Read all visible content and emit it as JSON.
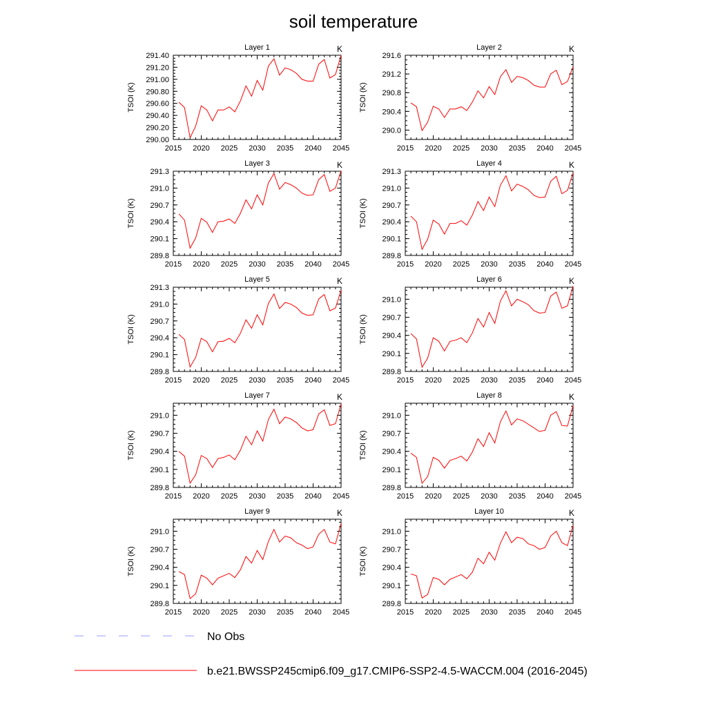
{
  "title": "soil temperature",
  "chart_data": {
    "type": "line",
    "title": "soil temperature",
    "ylabel": "TSOI  (K)",
    "units_label": "K",
    "x": [
      2016,
      2017,
      2018,
      2019,
      2020,
      2021,
      2022,
      2023,
      2024,
      2025,
      2026,
      2027,
      2028,
      2029,
      2030,
      2031,
      2032,
      2033,
      2034,
      2035,
      2036,
      2037,
      2038,
      2039,
      2040,
      2041,
      2042,
      2043,
      2044,
      2045
    ],
    "xlim": [
      2015,
      2045
    ],
    "xticks": [
      "2015",
      "2020",
      "2025",
      "2030",
      "2035",
      "2040",
      "2045"
    ],
    "series_color": "#ff0000",
    "panels": [
      {
        "title": "Layer 1",
        "ylim": [
          290.0,
          291.4
        ],
        "yticks": [
          "290.00",
          "290.20",
          "290.40",
          "290.60",
          "290.80",
          "291.00",
          "291.20",
          "291.40"
        ],
        "values": [
          290.62,
          290.53,
          290.03,
          290.22,
          290.56,
          290.49,
          290.31,
          290.49,
          290.49,
          290.54,
          290.46,
          290.64,
          290.89,
          290.72,
          290.98,
          290.82,
          291.22,
          291.34,
          291.07,
          291.19,
          291.16,
          291.1,
          291.0,
          290.97,
          290.97,
          291.25,
          291.33,
          291.02,
          291.08,
          291.4
        ]
      },
      {
        "title": "Layer 2",
        "ylim": [
          289.8,
          291.6
        ],
        "yticks": [
          "290.0",
          "290.4",
          "290.8",
          "291.2",
          "291.6"
        ],
        "values": [
          290.58,
          290.5,
          289.99,
          290.17,
          290.51,
          290.45,
          290.27,
          290.45,
          290.45,
          290.5,
          290.42,
          290.6,
          290.84,
          290.69,
          290.93,
          290.76,
          291.14,
          291.29,
          291.02,
          291.15,
          291.12,
          291.06,
          290.96,
          290.92,
          290.92,
          291.2,
          291.28,
          290.97,
          291.04,
          291.35
        ]
      },
      {
        "title": "Layer 3",
        "ylim": [
          289.8,
          291.3
        ],
        "yticks": [
          "289.8",
          "290.1",
          "290.4",
          "290.7",
          "291.0",
          "291.3"
        ],
        "values": [
          290.54,
          290.43,
          289.93,
          290.11,
          290.46,
          290.39,
          290.21,
          290.4,
          290.41,
          290.45,
          290.37,
          290.55,
          290.79,
          290.63,
          290.88,
          290.7,
          291.09,
          291.26,
          290.98,
          291.1,
          291.06,
          291.0,
          290.91,
          290.87,
          290.88,
          291.15,
          291.24,
          290.94,
          291.0,
          291.31
        ]
      },
      {
        "title": "Layer 4",
        "ylim": [
          289.8,
          291.3
        ],
        "yticks": [
          "289.8",
          "290.1",
          "290.4",
          "290.7",
          "291.0",
          "291.3"
        ],
        "values": [
          290.5,
          290.4,
          289.91,
          290.09,
          290.43,
          290.36,
          290.18,
          290.37,
          290.37,
          290.42,
          290.34,
          290.52,
          290.76,
          290.6,
          290.84,
          290.67,
          291.05,
          291.22,
          290.95,
          291.07,
          291.03,
          290.97,
          290.87,
          290.83,
          290.84,
          291.12,
          291.21,
          290.9,
          290.96,
          291.27
        ]
      },
      {
        "title": "Layer 5",
        "ylim": [
          289.8,
          291.3
        ],
        "yticks": [
          "289.8",
          "290.1",
          "290.4",
          "290.7",
          "291.0",
          "291.3"
        ],
        "values": [
          290.46,
          290.37,
          289.88,
          290.05,
          290.39,
          290.33,
          290.15,
          290.33,
          290.34,
          290.39,
          290.31,
          290.48,
          290.72,
          290.57,
          290.81,
          290.63,
          291.01,
          291.18,
          290.92,
          291.03,
          291.0,
          290.94,
          290.84,
          290.8,
          290.81,
          291.09,
          291.17,
          290.88,
          290.93,
          291.25
        ]
      },
      {
        "title": "Layer 6",
        "ylim": [
          289.8,
          291.2
        ],
        "yticks": [
          "289.8",
          "290.1",
          "290.4",
          "290.7",
          "291.0"
        ],
        "values": [
          290.43,
          290.34,
          289.87,
          290.02,
          290.36,
          290.3,
          290.14,
          290.3,
          290.32,
          290.36,
          290.28,
          290.44,
          290.68,
          290.54,
          290.78,
          290.6,
          290.97,
          291.14,
          290.89,
          291.0,
          290.96,
          290.91,
          290.81,
          290.77,
          290.78,
          291.05,
          291.12,
          290.85,
          290.89,
          291.22
        ]
      },
      {
        "title": "Layer 7",
        "ylim": [
          289.8,
          291.2
        ],
        "yticks": [
          "289.8",
          "290.1",
          "290.4",
          "290.7",
          "291.0"
        ],
        "values": [
          290.4,
          290.32,
          289.87,
          290.01,
          290.33,
          290.28,
          290.13,
          290.28,
          290.3,
          290.34,
          290.26,
          290.42,
          290.65,
          290.51,
          290.74,
          290.57,
          290.93,
          291.1,
          290.86,
          290.97,
          290.94,
          290.88,
          290.79,
          290.74,
          290.76,
          291.02,
          291.09,
          290.83,
          290.86,
          291.19
        ]
      },
      {
        "title": "Layer 8",
        "ylim": [
          289.8,
          291.2
        ],
        "yticks": [
          "289.8",
          "290.1",
          "290.4",
          "290.7",
          "291.0"
        ],
        "values": [
          290.37,
          290.3,
          289.87,
          289.98,
          290.3,
          290.25,
          290.12,
          290.25,
          290.28,
          290.32,
          290.24,
          290.39,
          290.61,
          290.48,
          290.71,
          290.54,
          290.89,
          291.07,
          290.84,
          290.94,
          290.91,
          290.85,
          290.79,
          290.73,
          290.75,
          291.0,
          291.06,
          290.83,
          290.82,
          291.16
        ]
      },
      {
        "title": "Layer 9",
        "ylim": [
          289.8,
          291.2
        ],
        "yticks": [
          "289.8",
          "290.1",
          "290.4",
          "290.7",
          "291.0"
        ],
        "values": [
          290.33,
          290.28,
          289.88,
          289.96,
          290.27,
          290.22,
          290.11,
          290.22,
          290.26,
          290.3,
          290.23,
          290.36,
          290.58,
          290.47,
          290.68,
          290.53,
          290.83,
          291.03,
          290.82,
          290.92,
          290.89,
          290.81,
          290.77,
          290.71,
          290.74,
          290.95,
          291.03,
          290.82,
          290.79,
          291.13
        ]
      },
      {
        "title": "Layer 10",
        "ylim": [
          289.8,
          291.2
        ],
        "yticks": [
          "289.8",
          "290.1",
          "290.4",
          "290.7",
          "291.0"
        ],
        "values": [
          290.29,
          290.26,
          289.89,
          289.95,
          290.23,
          290.2,
          290.11,
          290.2,
          290.24,
          290.28,
          290.21,
          290.32,
          290.55,
          290.46,
          290.65,
          290.52,
          290.8,
          290.99,
          290.81,
          290.9,
          290.88,
          290.79,
          290.76,
          290.7,
          290.73,
          290.92,
          291.0,
          290.81,
          290.76,
          291.1
        ]
      }
    ],
    "legend": [
      {
        "label": "No Obs",
        "color": "#9a9aff",
        "style": "dashed"
      },
      {
        "label": "b.e21.BWSSP245cmip6.f09_g17.CMIP6-SSP2-4.5-WACCM.004 (2016-2045)",
        "color": "#ff0000",
        "style": "solid"
      }
    ]
  }
}
